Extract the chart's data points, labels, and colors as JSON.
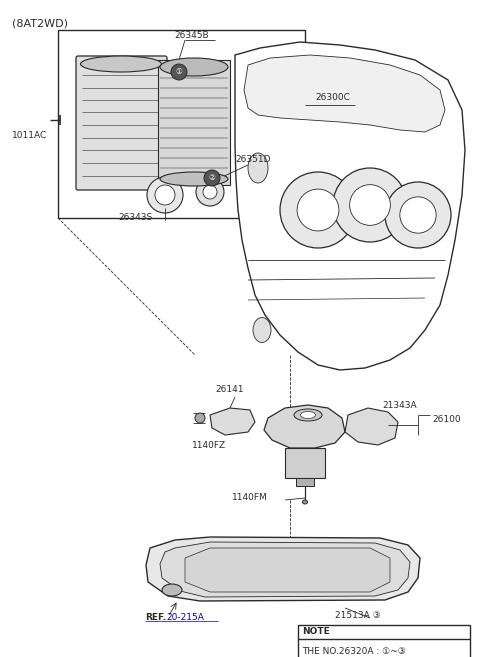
{
  "bg_color": "#ffffff",
  "line_color": "#2a2a2a",
  "fig_width": 4.8,
  "fig_height": 6.57,
  "dpi": 100,
  "labels": {
    "top_left": "(8AT2WD)",
    "lbl_26345B": "26345B",
    "lbl_26300C": "26300C",
    "lbl_26351D": "26351D",
    "lbl_26343S": "26343S",
    "lbl_1011AC": "1011AC",
    "lbl_26141": "26141",
    "lbl_1140FZ": "1140FZ",
    "lbl_1140FM": "1140FM",
    "lbl_21343A": "21343A",
    "lbl_26100": "26100",
    "lbl_21513A": "21513A ③",
    "lbl_ref": "REF.",
    "lbl_ref2": "20-215A",
    "note_title": "NOTE",
    "note_body": "THE NO.26320A : ①~③"
  }
}
